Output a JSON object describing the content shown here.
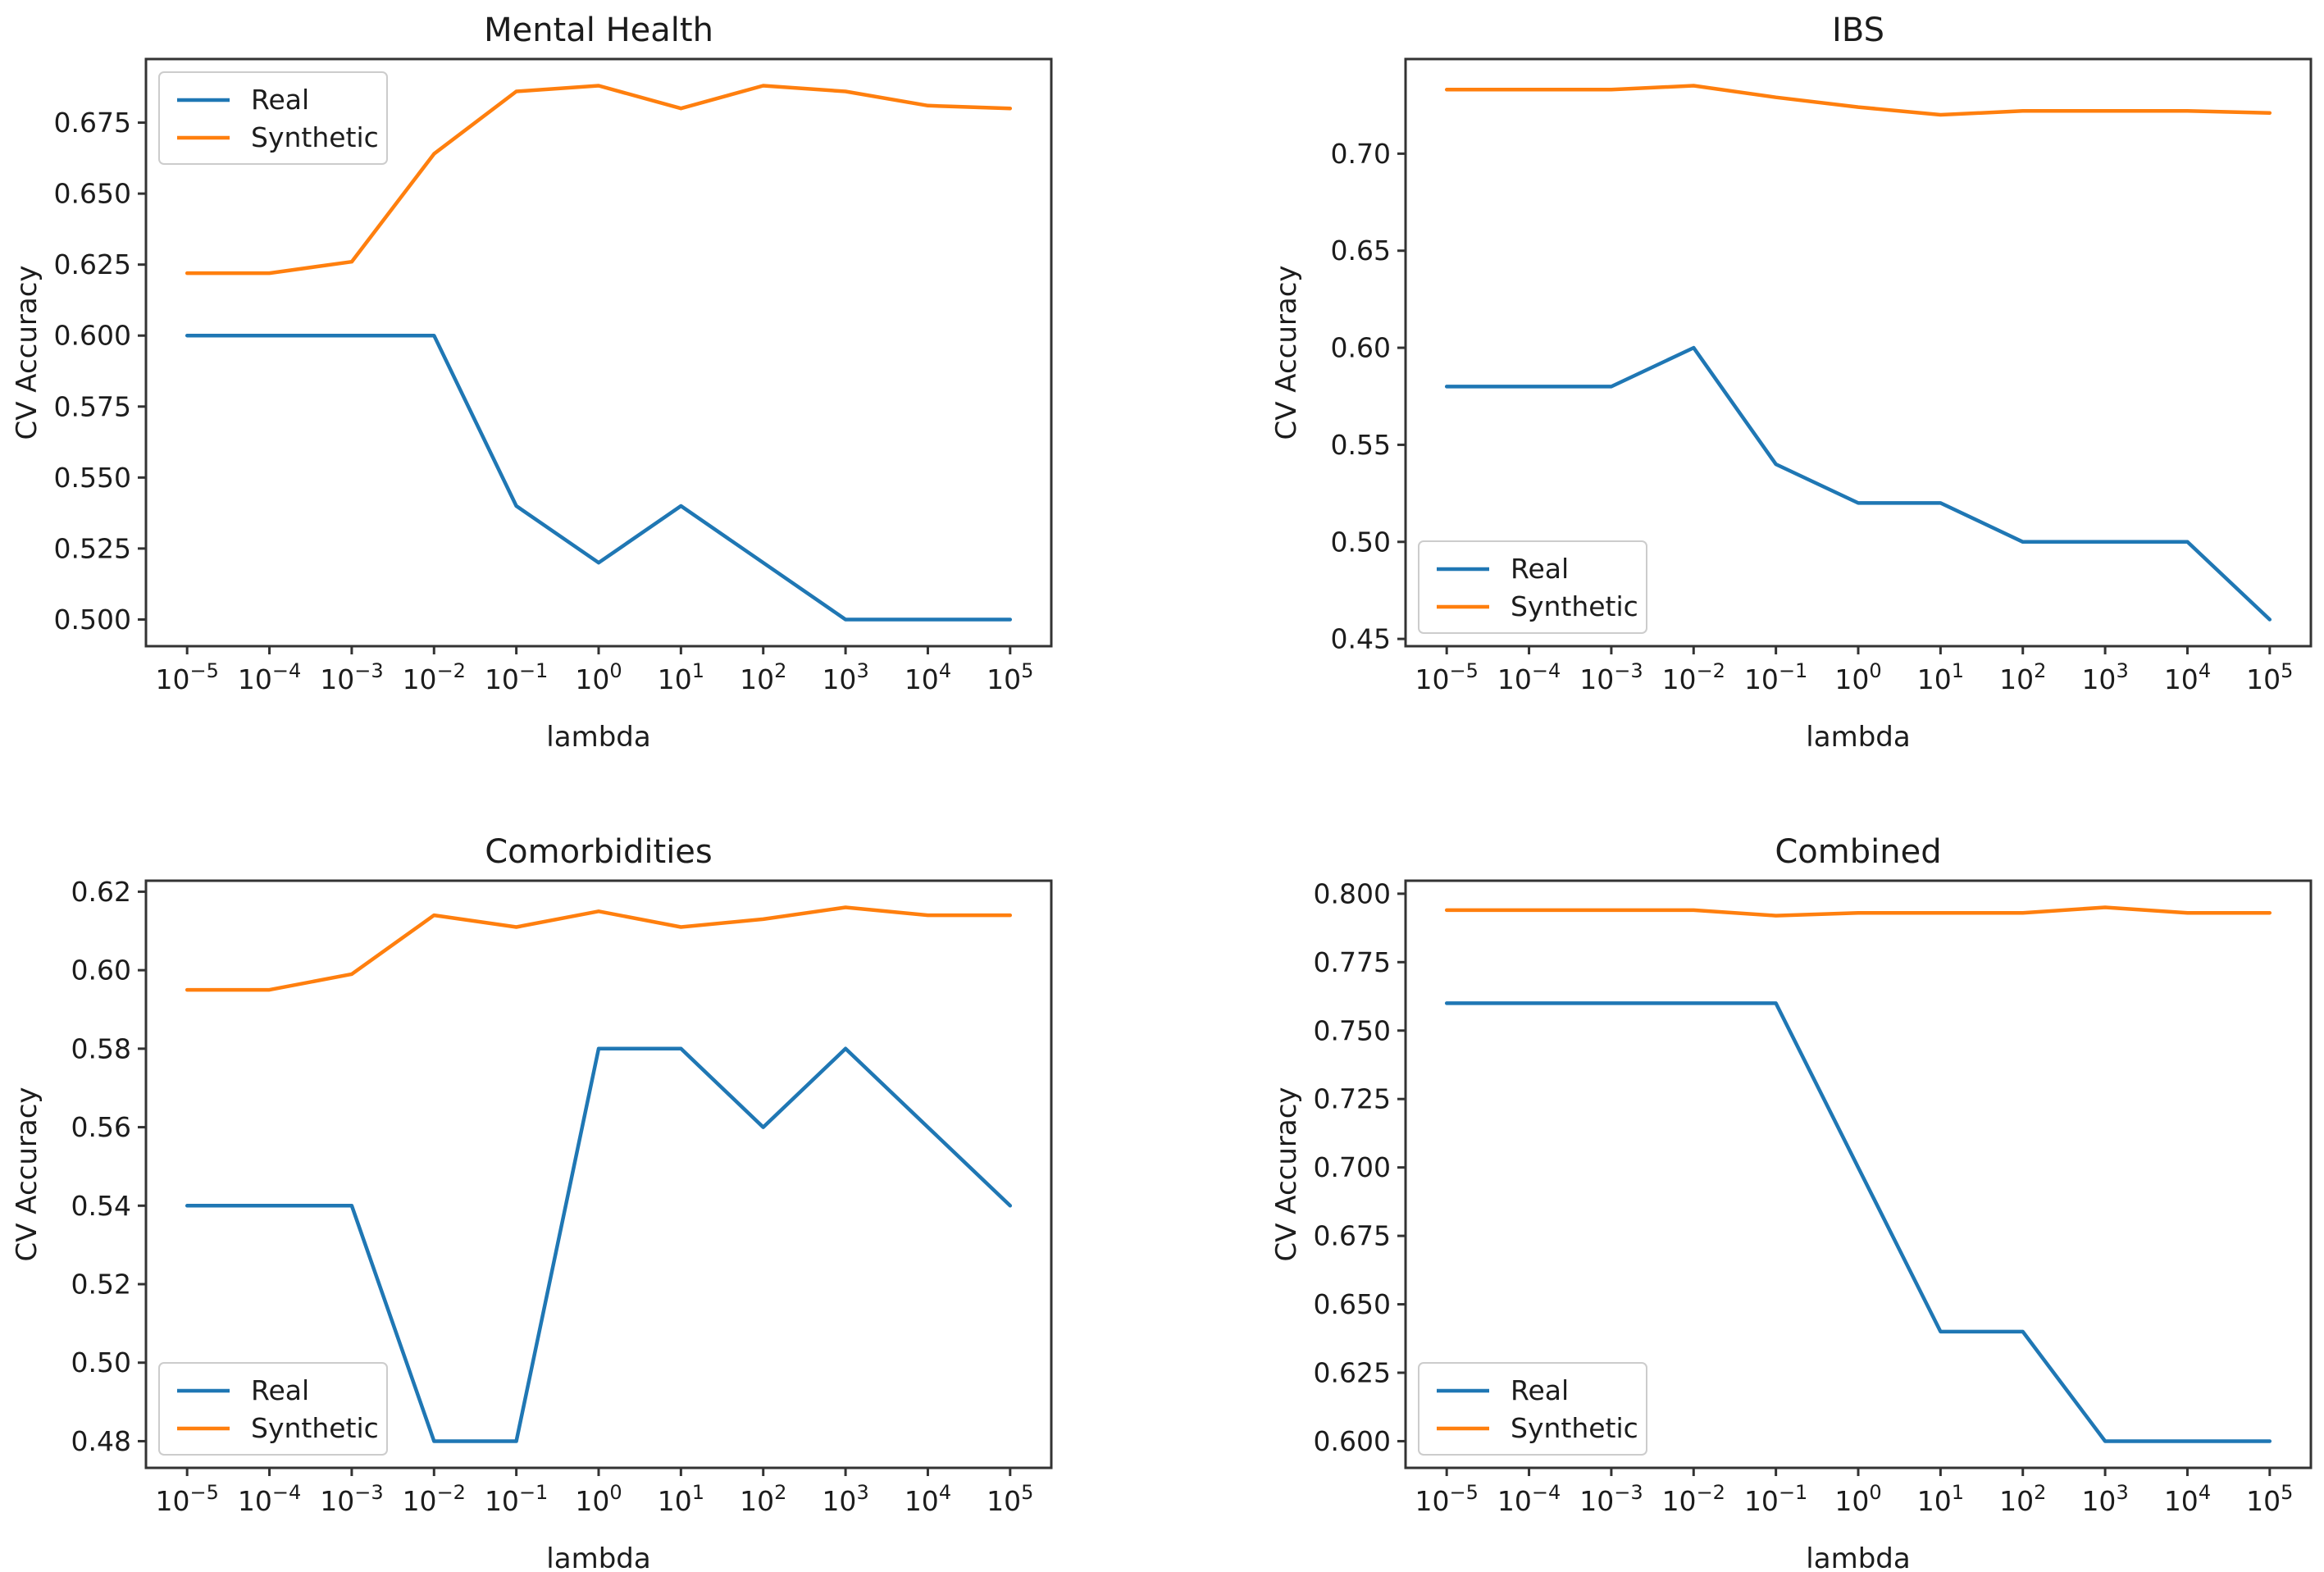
{
  "figure": {
    "background": "#ffffff",
    "text_color": "#1c1c1c",
    "axis_color": "#333333",
    "legend_border_color": "#cccccc",
    "series_colors": {
      "real": "#1f77b4",
      "synthetic": "#ff7f0e"
    }
  },
  "chart_data": [
    {
      "type": "line",
      "title": "Mental Health",
      "xlabel": "lambda",
      "ylabel": "CV Accuracy",
      "x_scale": "log10",
      "x_tick_exponents": [
        -5,
        -4,
        -3,
        -2,
        -1,
        0,
        1,
        2,
        3,
        4,
        5
      ],
      "xlim_log10": [
        -5.5,
        5.5
      ],
      "ylim": [
        0.4906,
        0.6974
      ],
      "yticks": [
        0.5,
        0.525,
        0.55,
        0.575,
        0.6,
        0.625,
        0.65,
        0.675
      ],
      "ytick_labels": [
        "0.500",
        "0.525",
        "0.550",
        "0.575",
        "0.600",
        "0.625",
        "0.650",
        "0.675"
      ],
      "legend_position": "upper-left",
      "series": [
        {
          "name": "Real",
          "color": "#1f77b4",
          "values": [
            0.6,
            0.6,
            0.6,
            0.6,
            0.54,
            0.52,
            0.54,
            0.52,
            0.5,
            0.5,
            0.5
          ]
        },
        {
          "name": "Synthetic",
          "color": "#ff7f0e",
          "values": [
            0.622,
            0.622,
            0.626,
            0.664,
            0.686,
            0.688,
            0.68,
            0.688,
            0.686,
            0.681,
            0.68
          ]
        }
      ]
    },
    {
      "type": "line",
      "title": "IBS",
      "xlabel": "lambda",
      "ylabel": "CV Accuracy",
      "x_scale": "log10",
      "x_tick_exponents": [
        -5,
        -4,
        -3,
        -2,
        -1,
        0,
        1,
        2,
        3,
        4,
        5
      ],
      "xlim_log10": [
        -5.5,
        5.5
      ],
      "ylim": [
        0.44625,
        0.74875
      ],
      "yticks": [
        0.45,
        0.5,
        0.55,
        0.6,
        0.65,
        0.7
      ],
      "ytick_labels": [
        "0.45",
        "0.50",
        "0.55",
        "0.60",
        "0.65",
        "0.70"
      ],
      "legend_position": "lower-left",
      "series": [
        {
          "name": "Real",
          "color": "#1f77b4",
          "values": [
            0.58,
            0.58,
            0.58,
            0.6,
            0.54,
            0.52,
            0.52,
            0.5,
            0.5,
            0.5,
            0.46
          ]
        },
        {
          "name": "Synthetic",
          "color": "#ff7f0e",
          "values": [
            0.733,
            0.733,
            0.733,
            0.735,
            0.729,
            0.724,
            0.72,
            0.722,
            0.722,
            0.722,
            0.721
          ]
        }
      ]
    },
    {
      "type": "line",
      "title": "Comorbidities",
      "xlabel": "lambda",
      "ylabel": "CV Accuracy",
      "x_scale": "log10",
      "x_tick_exponents": [
        -5,
        -4,
        -3,
        -2,
        -1,
        0,
        1,
        2,
        3,
        4,
        5
      ],
      "xlim_log10": [
        -5.5,
        5.5
      ],
      "ylim": [
        0.4732,
        0.6228
      ],
      "yticks": [
        0.48,
        0.5,
        0.52,
        0.54,
        0.56,
        0.58,
        0.6,
        0.62
      ],
      "ytick_labels": [
        "0.48",
        "0.50",
        "0.52",
        "0.54",
        "0.56",
        "0.58",
        "0.60",
        "0.62"
      ],
      "legend_position": "lower-left",
      "series": [
        {
          "name": "Real",
          "color": "#1f77b4",
          "values": [
            0.54,
            0.54,
            0.54,
            0.48,
            0.48,
            0.58,
            0.58,
            0.56,
            0.58,
            0.56,
            0.54
          ]
        },
        {
          "name": "Synthetic",
          "color": "#ff7f0e",
          "values": [
            0.595,
            0.595,
            0.599,
            0.614,
            0.611,
            0.615,
            0.611,
            0.613,
            0.616,
            0.614,
            0.614
          ]
        }
      ]
    },
    {
      "type": "line",
      "title": "Combined",
      "xlabel": "lambda",
      "ylabel": "CV Accuracy",
      "x_scale": "log10",
      "x_tick_exponents": [
        -5,
        -4,
        -3,
        -2,
        -1,
        0,
        1,
        2,
        3,
        4,
        5
      ],
      "xlim_log10": [
        -5.5,
        5.5
      ],
      "ylim": [
        0.59025,
        0.80475
      ],
      "yticks": [
        0.6,
        0.625,
        0.65,
        0.675,
        0.7,
        0.725,
        0.75,
        0.775,
        0.8
      ],
      "ytick_labels": [
        "0.600",
        "0.625",
        "0.650",
        "0.675",
        "0.700",
        "0.725",
        "0.750",
        "0.775",
        "0.800"
      ],
      "legend_position": "lower-left",
      "series": [
        {
          "name": "Real",
          "color": "#1f77b4",
          "values": [
            0.76,
            0.76,
            0.76,
            0.76,
            0.76,
            0.7,
            0.64,
            0.64,
            0.6,
            0.6,
            0.6
          ]
        },
        {
          "name": "Synthetic",
          "color": "#ff7f0e",
          "values": [
            0.794,
            0.794,
            0.794,
            0.794,
            0.792,
            0.793,
            0.793,
            0.793,
            0.795,
            0.793,
            0.793
          ]
        }
      ]
    }
  ]
}
